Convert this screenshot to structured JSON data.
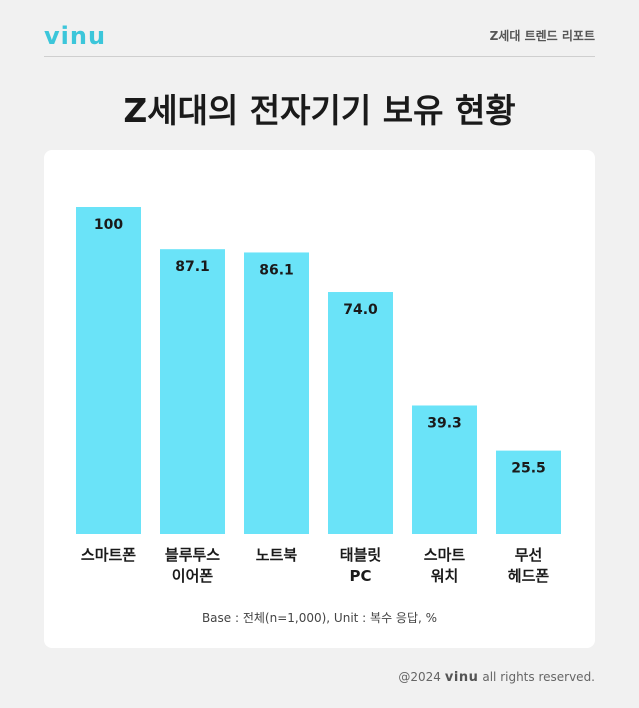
{
  "header": {
    "logo_text": "vinu",
    "report_label": "Z세대 트렌드 리포트"
  },
  "title": "Z세대의 전자기기 보유 현황",
  "footnote": "Base : 전체(n=1,000), Unit : 복수 응답, %",
  "footer": {
    "year_text": "@2024",
    "logo_text": "vinu",
    "rights_text": "all rights reserved."
  },
  "colors": {
    "bar": "#6ae3f8",
    "brand": "#3cc6da",
    "background": "#f1f1f1",
    "card": "#ffffff"
  },
  "chart_data": {
    "type": "bar",
    "title": "Z세대의 전자기기 보유 현황",
    "xlabel": "",
    "ylabel": "",
    "ylim": [
      0,
      100
    ],
    "grid": false,
    "categories": [
      [
        "스마트폰"
      ],
      [
        "블루투스",
        "이어폰"
      ],
      [
        "노트북"
      ],
      [
        "태블릿",
        "PC"
      ],
      [
        "스마트",
        "워치"
      ],
      [
        "무선",
        "헤드폰"
      ]
    ],
    "values": [
      100,
      87.1,
      86.1,
      74.0,
      39.3,
      25.5
    ],
    "value_labels": [
      "100",
      "87.1",
      "86.1",
      "74.0",
      "39.3",
      "25.5"
    ]
  }
}
